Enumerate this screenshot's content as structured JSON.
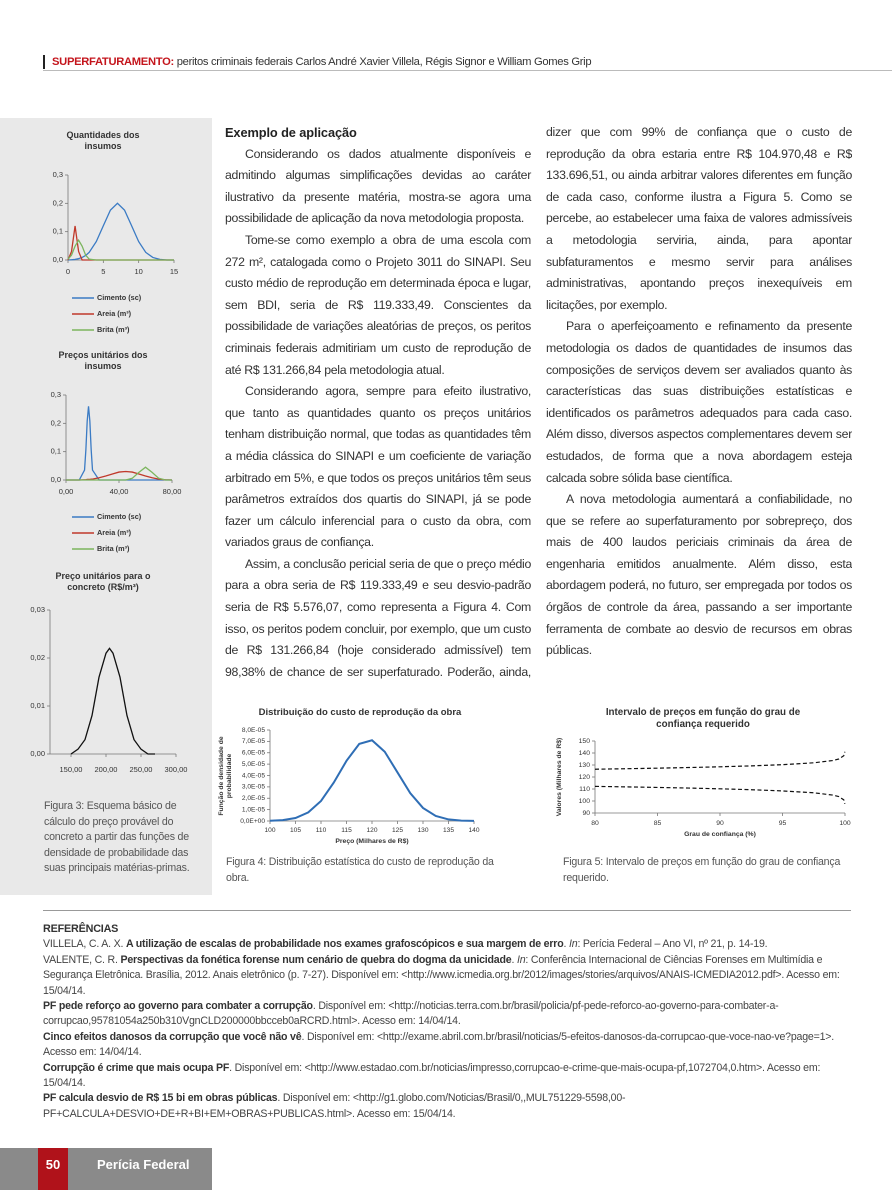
{
  "header": {
    "kicker": "SUPERFATURAMENTO:",
    "text": "peritos criminais federais Carlos André Xavier Villela, Régis Signor e William Gomes Grip"
  },
  "article": {
    "heading": "Exemplo de aplicação",
    "paragraphs": [
      "Considerando os dados atualmente disponíveis e admitindo algumas simplificações devidas ao caráter ilustrativo da presente matéria, mostra-se agora uma possibilidade de aplicação da nova metodologia proposta.",
      "Tome-se como exemplo a obra de uma escola com 272 m², catalogada como o Projeto 3011 do SINAPI. Seu custo médio de reprodução em determinada época e lugar, sem BDI, seria de R$ 119.333,49. Conscientes da possibilidade de variações aleatórias de preços, os peritos criminais federais admitiriam um custo de reprodução de até R$ 131.266,84 pela metodologia atual.",
      "Considerando agora, sempre para efeito ilustrativo, que tanto as quantidades quanto os preços unitários tenham distribuição normal, que todas as quantidades têm a média clássica do SINAPI e um coeficiente de variação arbitrado em 5%, e que todos os preços unitários têm seus parâmetros extraídos dos quartis do SINAPI, já se pode fazer um cálculo inferencial para o custo da obra, com variados graus de confiança.",
      "Assim, a conclusão pericial seria de que o preço médio para a obra seria de R$ 119.333,49 e seu desvio-padrão seria de R$ 5.576,07, como representa a Figura 4. Com isso, os peritos podem concluir, por exemplo, que um custo de R$ 131.266,84 (hoje considerado admissível) tem 98,38% de chance de ser superfaturado. Poderão, ainda, dizer que com 99% de confiança que o custo de reprodução da obra estaria entre R$ 104.970,48 e R$ 133.696,51, ou ainda arbitrar valores diferentes em função de cada caso, conforme ilustra a Figura 5. Como se percebe, ao estabelecer uma faixa de valores admissíveis a metodologia serviria, ainda, para apontar subfaturamentos e mesmo servir para análises administrativas, apontando preços inexequíveis em licitações, por exemplo.",
      "Para o aperfeiçoamento e refinamento da presente metodologia os dados de quantidades de insumos das composições de serviços devem ser avaliados quanto às características das suas distribuições estatísticas e identificados os parâmetros adequados para cada caso. Além disso, diversos aspectos complementares devem ser estudados, de forma que a nova abordagem esteja calcada sobre sólida base científica.",
      "A nova metodologia aumentará a confiabilidade, no que se refere ao superfaturamento por sobrepreço, dos mais de 400 laudos periciais criminais da área de engenharia emitidos anualmente. Além disso, esta abordagem poderá, no futuro, ser empregada por todos os órgãos de controle da área, passando a ser importante ferramenta de combate ao desvio de recursos em obras públicas."
    ]
  },
  "captions": {
    "figure3": "Figura 3: Esquema básico de cálculo do preço provável do concreto a partir das funções de densidade de probabilidade das suas principais matérias-primas.",
    "figure4": "Figura 4: Distribuição estatística do custo de reprodução da obra.",
    "figure5": "Figura 5: Intervalo de preços em função do grau de confiança requerido."
  },
  "chart_data": [
    {
      "type": "line",
      "title": "Quantidades dos insumos",
      "xlim": [
        0,
        15
      ],
      "ylim": [
        0,
        0.3
      ],
      "xticks": [
        0,
        5,
        10,
        15
      ],
      "yticks": [
        {
          "value": 0,
          "label": "0,0"
        },
        {
          "value": 0.1,
          "label": "0,1"
        },
        {
          "value": 0.2,
          "label": "0,2"
        },
        {
          "value": 0.3,
          "label": "0,3"
        }
      ],
      "x": [
        0,
        0.5,
        1,
        1.5,
        2,
        2.5,
        3,
        4,
        5,
        6,
        7,
        8,
        9,
        10,
        11,
        12,
        13,
        14,
        15
      ],
      "series": [
        {
          "name": "Cimento (sc)",
          "color": "#3b7bc4",
          "values": [
            0,
            0.001,
            0.002,
            0.005,
            0.009,
            0.016,
            0.027,
            0.065,
            0.121,
            0.176,
            0.2,
            0.176,
            0.121,
            0.065,
            0.027,
            0.009,
            0.002,
            0,
            0
          ]
        },
        {
          "name": "Areia (m³)",
          "color": "#c0392b",
          "values": [
            0,
            0.03,
            0.12,
            0.03,
            0,
            0,
            0,
            0,
            0,
            0,
            0,
            0,
            0,
            0,
            0,
            0,
            0,
            0,
            0
          ]
        },
        {
          "name": "Brita (m³)",
          "color": "#7cb55e",
          "values": [
            0.003,
            0.017,
            0.049,
            0.07,
            0.049,
            0.017,
            0.003,
            0,
            0,
            0,
            0,
            0,
            0,
            0,
            0,
            0,
            0,
            0,
            0
          ]
        }
      ]
    },
    {
      "type": "line",
      "title": "Preços unitários dos insumos",
      "xlim": [
        0,
        80
      ],
      "ylim": [
        0,
        0.3
      ],
      "xticks": [
        {
          "value": 0,
          "label": "0,00"
        },
        {
          "value": 40,
          "label": "40,00"
        },
        {
          "value": 80,
          "label": "80,00"
        }
      ],
      "yticks": [
        {
          "value": 0,
          "label": "0,0"
        },
        {
          "value": 0.1,
          "label": "0,1"
        },
        {
          "value": 0.2,
          "label": "0,2"
        },
        {
          "value": 0.3,
          "label": "0,3"
        }
      ],
      "x": [
        0,
        5,
        10,
        14,
        15,
        16,
        17,
        18,
        19,
        20,
        25,
        30,
        35,
        40,
        45,
        50,
        55,
        60,
        65,
        70,
        75,
        80
      ],
      "series": [
        {
          "name": "Cimento (sc)",
          "color": "#3b7bc4",
          "values": [
            0,
            0,
            0,
            0.035,
            0.107,
            0.208,
            0.26,
            0.208,
            0.107,
            0.035,
            0,
            0,
            0,
            0,
            0,
            0,
            0,
            0,
            0,
            0,
            0,
            0
          ]
        },
        {
          "name": "Areia (m³)",
          "color": "#c0392b",
          "values": [
            0,
            0,
            0,
            0.001,
            0.001,
            0.002,
            0.002,
            0.002,
            0.003,
            0.003,
            0.008,
            0.014,
            0.021,
            0.028,
            0.03,
            0.028,
            0.021,
            0.014,
            0.008,
            0.003,
            0.001,
            0
          ]
        },
        {
          "name": "Brita (m³)",
          "color": "#7cb55e",
          "values": [
            0,
            0,
            0,
            0,
            0,
            0,
            0,
            0,
            0,
            0,
            0,
            0,
            0,
            0,
            0,
            0.006,
            0.027,
            0.045,
            0.027,
            0.006,
            0,
            0
          ]
        }
      ]
    },
    {
      "type": "line",
      "title": "Preço unitários para o concreto (R$/m³)",
      "xlim": [
        120,
        300
      ],
      "ylim": [
        0,
        0.03
      ],
      "xticks": [
        {
          "value": 150,
          "label": "150,00"
        },
        {
          "value": 200,
          "label": "200,00"
        },
        {
          "value": 250,
          "label": "250,00"
        },
        {
          "value": 300,
          "label": "300,00"
        }
      ],
      "yticks": [
        {
          "value": 0,
          "label": "0,00"
        },
        {
          "value": 0.01,
          "label": "0,01"
        },
        {
          "value": 0.02,
          "label": "0,02"
        },
        {
          "value": 0.03,
          "label": "0,03"
        }
      ],
      "x": [
        150,
        160,
        170,
        180,
        190,
        200,
        205,
        210,
        220,
        230,
        240,
        250,
        260,
        270
      ],
      "series": [
        {
          "color": "#111111",
          "values": [
            0,
            0.001,
            0.003,
            0.008,
            0.016,
            0.021,
            0.022,
            0.021,
            0.016,
            0.008,
            0.003,
            0.001,
            0,
            0
          ]
        }
      ]
    },
    {
      "type": "line",
      "title": "Distribuição do custo de reprodução da obra",
      "x_label": "Preço (Milhares de R$)",
      "y_label": "Função de densidade de probabilidade",
      "xlim": [
        100,
        140
      ],
      "ylim": [
        0,
        8e-05
      ],
      "xticks": [
        100,
        105,
        110,
        115,
        120,
        125,
        130,
        135,
        140
      ],
      "yticks": [
        {
          "value": 0,
          "label": "0,0E+00"
        },
        {
          "value": 1e-05,
          "label": "1,0E-05"
        },
        {
          "value": 2e-05,
          "label": "2,0E-05"
        },
        {
          "value": 3e-05,
          "label": "3,0E-05"
        },
        {
          "value": 4e-05,
          "label": "4,0E-05"
        },
        {
          "value": 5e-05,
          "label": "5,0E-05"
        },
        {
          "value": 6e-05,
          "label": "6,0E-05"
        },
        {
          "value": 7e-05,
          "label": "7,0E-05"
        },
        {
          "value": 8e-05,
          "label": "8,0E-05"
        }
      ],
      "x": [
        100,
        102.5,
        105,
        107.5,
        110,
        112.5,
        115,
        117.5,
        120,
        122.5,
        125,
        127.5,
        130,
        132.5,
        135,
        137.5,
        140
      ],
      "series": [
        {
          "color": "#2f6eb5",
          "values": [
            1.8e-07,
            7.5e-07,
            2.63e-06,
            7.53e-06,
            1.763e-05,
            3.377e-05,
            5.29e-05,
            6.78e-05,
            7.1e-05,
            6.09e-05,
            4.27e-05,
            2.45e-05,
            1.147e-05,
            4.4e-06,
            1.38e-06,
            3.5e-07,
            7e-08
          ]
        }
      ]
    },
    {
      "type": "line",
      "title": "Intervalo de preços em função do grau de confiança requerido",
      "x_label": "Grau de confiança (%)",
      "y_label": "Valores (Milhares de R$)",
      "xlim": [
        80,
        100
      ],
      "ylim": [
        90,
        150
      ],
      "xticks": [
        80,
        85,
        90,
        95,
        100
      ],
      "yticks": [
        90,
        100,
        110,
        120,
        130,
        140,
        150
      ],
      "x": [
        80,
        82.5,
        85,
        87.5,
        90,
        92.5,
        95,
        97.5,
        99,
        99.5,
        99.9,
        99.99
      ],
      "series": [
        {
          "color": "#111111",
          "line_style": "dashed",
          "values": [
            126.48,
            126.9,
            127.36,
            127.89,
            128.51,
            129.26,
            130.26,
            131.83,
            133.7,
            134.99,
            137.68,
            141.03
          ]
        },
        {
          "color": "#111111",
          "line_style": "dashed",
          "values": [
            112.19,
            111.77,
            111.31,
            110.78,
            110.16,
            109.4,
            108.4,
            106.84,
            104.97,
            103.68,
            100.99,
            97.64
          ]
        }
      ]
    }
  ],
  "references": {
    "heading": "REFERÊNCIAS",
    "items": [
      [
        {
          "t": "VILLELA, C. A. X. "
        },
        {
          "t": "A utilização de escalas de probabilidade nos exames grafoscópicos e sua margem de erro",
          "s": "b"
        },
        {
          "t": ". "
        },
        {
          "t": "In",
          "s": "i"
        },
        {
          "t": ": Perícia Federal – Ano VI, nº 21, p. 14-19."
        }
      ],
      [
        {
          "t": "VALENTE, C. R. "
        },
        {
          "t": "Perspectivas da fonética forense num cenário de quebra do dogma da unicidade",
          "s": "b"
        },
        {
          "t": ". "
        },
        {
          "t": "In",
          "s": "i"
        },
        {
          "t": ": Conferência Internacional de Ciências Forenses em Multimídia e Segurança Eletrônica. Brasília, 2012. Anais eletrônico (p. 7-27). Disponível em: <http://www.icmedia.org.br/2012/images/stories/arquivos/ANAIS-ICMEDIA2012.pdf>. Acesso em: 15/04/14."
        }
      ],
      [
        {
          "t": "PF pede reforço ao governo para combater a corrupção",
          "s": "b"
        },
        {
          "t": ". Disponível em: <http://noticias.terra.com.br/brasil/policia/pf-pede-reforco-ao-governo-para-combater-a-corrupcao,95781054a250b310VgnCLD200000bbcceb0aRCRD.html>. Acesso em: 14/04/14."
        }
      ],
      [
        {
          "t": "Cinco efeitos danosos da corrupção que você não vê",
          "s": "b"
        },
        {
          "t": ". Disponível em: <http://exame.abril.com.br/brasil/noticias/5-efeitos-danosos-da-corrupcao-que-voce-nao-ve?page=1>. Acesso em: 14/04/14."
        }
      ],
      [
        {
          "t": "Corrupção é crime que mais ocupa PF",
          "s": "b"
        },
        {
          "t": ". Disponível em: <http://www.estadao.com.br/noticias/impresso,corrupcao-e-crime-que-mais-ocupa-pf,1072704,0.htm>. Acesso em: 15/04/14."
        }
      ],
      [
        {
          "t": "PF calcula desvio de R$ 15 bi em obras públicas",
          "s": "b"
        },
        {
          "t": ". Disponível em: <http://g1.globo.com/Noticias/Brasil/0,,MUL751229-5598,00-PF+CALCULA+DESVIO+DE+R+BI+EM+OBRAS+PUBLICAS.html>. Acesso em: 15/04/14."
        }
      ]
    ]
  },
  "footer": {
    "page": "50",
    "magazine": "Perícia Federal"
  }
}
